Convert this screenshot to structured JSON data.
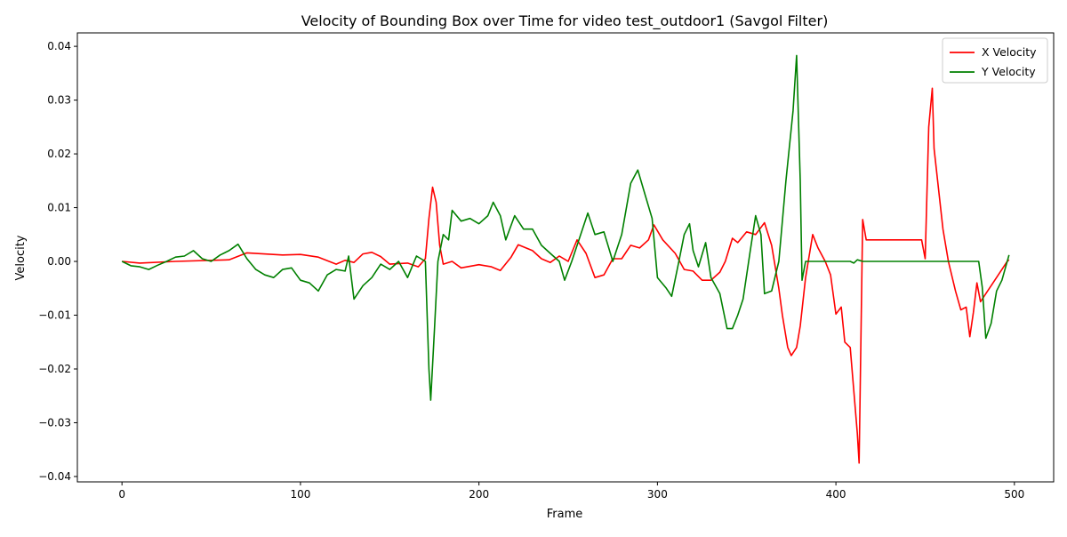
{
  "chart_data": {
    "type": "line",
    "title": "Velocity of Bounding Box over Time for video test_outdoor1 (Savgol Filter)",
    "xlabel": "Frame",
    "ylabel": "Velocity",
    "xlim": [
      -25,
      522
    ],
    "ylim": [
      -0.041,
      0.0425
    ],
    "xticks": [
      0,
      100,
      200,
      300,
      400,
      500
    ],
    "yticks": [
      -0.04,
      -0.03,
      -0.02,
      -0.01,
      0.0,
      0.01,
      0.02,
      0.03,
      0.04
    ],
    "xtick_labels": [
      "0",
      "100",
      "200",
      "300",
      "400",
      "500"
    ],
    "ytick_labels": [
      "−0.04",
      "−0.03",
      "−0.02",
      "−0.01",
      "0.00",
      "0.01",
      "0.02",
      "0.03",
      "0.04"
    ],
    "grid": false,
    "legend_position": "top-right",
    "series": [
      {
        "name": "X Velocity",
        "color": "#ff0000",
        "points": [
          [
            0,
            0
          ],
          [
            10,
            -0.0003
          ],
          [
            30,
            0
          ],
          [
            60,
            0.0003
          ],
          [
            70,
            0.0016
          ],
          [
            90,
            0.0012
          ],
          [
            100,
            0.0013
          ],
          [
            110,
            0.0008
          ],
          [
            120,
            -0.0005
          ],
          [
            125,
            0.0002
          ],
          [
            130,
            -0.0002
          ],
          [
            135,
            0.0014
          ],
          [
            140,
            0.0017
          ],
          [
            145,
            0.0009
          ],
          [
            150,
            -0.0005
          ],
          [
            160,
            -0.0003
          ],
          [
            166,
            -0.001
          ],
          [
            170,
            0.0005
          ],
          [
            172,
            0.008
          ],
          [
            174,
            0.0138
          ],
          [
            176,
            0.011
          ],
          [
            178,
            0.003
          ],
          [
            180,
            -0.0005
          ],
          [
            185,
            0
          ],
          [
            190,
            -0.0012
          ],
          [
            200,
            -0.0006
          ],
          [
            207,
            -0.001
          ],
          [
            212,
            -0.0017
          ],
          [
            218,
            0.0008
          ],
          [
            222,
            0.0031
          ],
          [
            230,
            0.002
          ],
          [
            235,
            0.0005
          ],
          [
            240,
            -0.0002
          ],
          [
            245,
            0.001
          ],
          [
            250,
            0
          ],
          [
            255,
            0.004
          ],
          [
            260,
            0.0015
          ],
          [
            265,
            -0.003
          ],
          [
            270,
            -0.0025
          ],
          [
            275,
            0.0005
          ],
          [
            280,
            0.0005
          ],
          [
            285,
            0.003
          ],
          [
            290,
            0.0025
          ],
          [
            295,
            0.004
          ],
          [
            298,
            0.0068
          ],
          [
            303,
            0.004
          ],
          [
            310,
            0.0015
          ],
          [
            315,
            -0.0015
          ],
          [
            320,
            -0.0018
          ],
          [
            325,
            -0.0035
          ],
          [
            330,
            -0.0035
          ],
          [
            335,
            -0.002
          ],
          [
            338,
            0
          ],
          [
            342,
            0.0043
          ],
          [
            345,
            0.0035
          ],
          [
            350,
            0.0055
          ],
          [
            355,
            0.005
          ],
          [
            360,
            0.0072
          ],
          [
            364,
            0.003
          ],
          [
            368,
            -0.005
          ],
          [
            370,
            -0.01
          ],
          [
            373,
            -0.016
          ],
          [
            375,
            -0.0175
          ],
          [
            378,
            -0.016
          ],
          [
            380,
            -0.012
          ],
          [
            383,
            -0.003
          ],
          [
            387,
            0.005
          ],
          [
            390,
            0.0025
          ],
          [
            394,
            0
          ],
          [
            397,
            -0.0025
          ],
          [
            400,
            -0.0098
          ],
          [
            403,
            -0.0085
          ],
          [
            405,
            -0.015
          ],
          [
            408,
            -0.016
          ],
          [
            410,
            -0.024
          ],
          [
            412,
            -0.032
          ],
          [
            413,
            -0.0375
          ],
          [
            415,
            0.0078
          ],
          [
            417,
            0.004
          ],
          [
            440,
            0.004
          ],
          [
            448,
            0.004
          ],
          [
            450,
            0.0005
          ],
          [
            452,
            0.025
          ],
          [
            454,
            0.0322
          ],
          [
            455,
            0.021
          ],
          [
            457,
            0.015
          ],
          [
            460,
            0.006
          ],
          [
            463,
            0
          ],
          [
            467,
            -0.0055
          ],
          [
            470,
            -0.009
          ],
          [
            473,
            -0.0085
          ],
          [
            475,
            -0.014
          ],
          [
            477,
            -0.0095
          ],
          [
            479,
            -0.004
          ],
          [
            481,
            -0.0075
          ],
          [
            484,
            -0.006
          ],
          [
            488,
            -0.004
          ],
          [
            492,
            -0.002
          ],
          [
            496,
            0
          ],
          [
            497,
            0.0003
          ]
        ]
      },
      {
        "name": "Y Velocity",
        "color": "#008000",
        "points": [
          [
            0,
            0
          ],
          [
            5,
            -0.0008
          ],
          [
            10,
            -0.001
          ],
          [
            15,
            -0.0015
          ],
          [
            20,
            -0.0007
          ],
          [
            25,
            0
          ],
          [
            30,
            0.0008
          ],
          [
            35,
            0.001
          ],
          [
            40,
            0.002
          ],
          [
            45,
            0.0005
          ],
          [
            50,
            0
          ],
          [
            55,
            0.0012
          ],
          [
            60,
            0.002
          ],
          [
            65,
            0.0032
          ],
          [
            70,
            0.0005
          ],
          [
            75,
            -0.0015
          ],
          [
            80,
            -0.0025
          ],
          [
            85,
            -0.003
          ],
          [
            90,
            -0.0015
          ],
          [
            95,
            -0.0012
          ],
          [
            100,
            -0.0035
          ],
          [
            105,
            -0.004
          ],
          [
            110,
            -0.0055
          ],
          [
            115,
            -0.0025
          ],
          [
            120,
            -0.0015
          ],
          [
            125,
            -0.0018
          ],
          [
            127,
            0.001
          ],
          [
            130,
            -0.007
          ],
          [
            135,
            -0.0045
          ],
          [
            140,
            -0.003
          ],
          [
            145,
            -0.0005
          ],
          [
            150,
            -0.0015
          ],
          [
            155,
            0
          ],
          [
            160,
            -0.003
          ],
          [
            165,
            0.001
          ],
          [
            170,
            0
          ],
          [
            172,
            -0.02
          ],
          [
            173,
            -0.0258
          ],
          [
            175,
            -0.013
          ],
          [
            177,
            0
          ],
          [
            180,
            0.005
          ],
          [
            183,
            0.004
          ],
          [
            185,
            0.0095
          ],
          [
            190,
            0.0075
          ],
          [
            195,
            0.008
          ],
          [
            200,
            0.007
          ],
          [
            205,
            0.0085
          ],
          [
            208,
            0.011
          ],
          [
            212,
            0.0085
          ],
          [
            215,
            0.004
          ],
          [
            220,
            0.0085
          ],
          [
            225,
            0.006
          ],
          [
            230,
            0.006
          ],
          [
            235,
            0.003
          ],
          [
            240,
            0.0015
          ],
          [
            245,
            0
          ],
          [
            248,
            -0.0035
          ],
          [
            252,
            0
          ],
          [
            256,
            0.004
          ],
          [
            261,
            0.009
          ],
          [
            265,
            0.005
          ],
          [
            270,
            0.0055
          ],
          [
            275,
            0
          ],
          [
            280,
            0.005
          ],
          [
            285,
            0.0145
          ],
          [
            289,
            0.017
          ],
          [
            293,
            0.0125
          ],
          [
            297,
            0.008
          ],
          [
            300,
            -0.003
          ],
          [
            305,
            -0.005
          ],
          [
            308,
            -0.0065
          ],
          [
            312,
            0
          ],
          [
            315,
            0.005
          ],
          [
            318,
            0.007
          ],
          [
            320,
            0.002
          ],
          [
            323,
            -0.001
          ],
          [
            327,
            0.0035
          ],
          [
            330,
            -0.003
          ],
          [
            335,
            -0.006
          ],
          [
            339,
            -0.0125
          ],
          [
            342,
            -0.0125
          ],
          [
            345,
            -0.01
          ],
          [
            348,
            -0.007
          ],
          [
            352,
            0.002
          ],
          [
            355,
            0.0085
          ],
          [
            358,
            0.005
          ],
          [
            360,
            -0.006
          ],
          [
            364,
            -0.0055
          ],
          [
            368,
            0
          ],
          [
            372,
            0.015
          ],
          [
            376,
            0.028
          ],
          [
            378,
            0.0383
          ],
          [
            380,
            0.015
          ],
          [
            381,
            -0.0035
          ],
          [
            383,
            0
          ],
          [
            408,
            0
          ],
          [
            410,
            -0.0003
          ],
          [
            412,
            0.0003
          ],
          [
            415,
            0
          ],
          [
            480,
            0
          ],
          [
            482,
            -0.0048
          ],
          [
            484,
            -0.0143
          ],
          [
            487,
            -0.0115
          ],
          [
            490,
            -0.0055
          ],
          [
            493,
            -0.0035
          ],
          [
            497,
            0.0012
          ]
        ]
      }
    ]
  }
}
